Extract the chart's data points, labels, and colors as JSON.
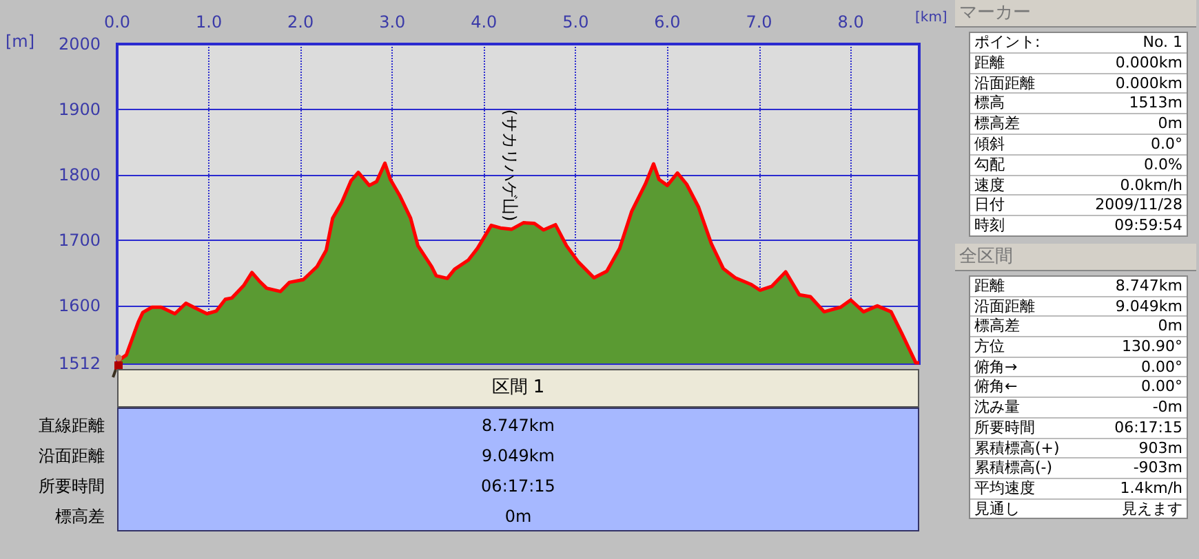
{
  "chart_data": [
    {
      "type": "area",
      "xlabel": "[km]",
      "ylabel": "[m]",
      "x": [
        0,
        0.1,
        0.23,
        0.28,
        0.38,
        0.48,
        0.63,
        0.75,
        0.85,
        0.98,
        1.08,
        1.18,
        1.25,
        1.38,
        1.47,
        1.55,
        1.63,
        1.78,
        1.88,
        2.03,
        2.18,
        2.28,
        2.35,
        2.45,
        2.55,
        2.63,
        2.75,
        2.83,
        2.92,
        2.98,
        3.08,
        3.2,
        3.28,
        3.43,
        3.48,
        3.6,
        3.68,
        3.83,
        3.93,
        4.08,
        4.18,
        4.3,
        4.43,
        4.55,
        4.65,
        4.78,
        4.9,
        5.03,
        5.2,
        5.34,
        5.48,
        5.61,
        5.76,
        5.85,
        5.91,
        6.0,
        6.11,
        6.21,
        6.34,
        6.48,
        6.61,
        6.74,
        6.91,
        7.01,
        7.14,
        7.29,
        7.44,
        7.56,
        7.71,
        7.89,
        8.0,
        8.14,
        8.29,
        8.44,
        8.56,
        8.71,
        8.747
      ],
      "series": [
        {
          "color": "#5a9a32",
          "values": [
            1515,
            1525,
            1575,
            1590,
            1598,
            1598,
            1588,
            1604,
            1597,
            1588,
            1592,
            1610,
            1612,
            1631,
            1651,
            1638,
            1627,
            1622,
            1636,
            1640,
            1660,
            1685,
            1734,
            1758,
            1791,
            1804,
            1784,
            1790,
            1818,
            1793,
            1769,
            1734,
            1692,
            1660,
            1646,
            1642,
            1656,
            1670,
            1688,
            1723,
            1719,
            1717,
            1727,
            1726,
            1716,
            1724,
            1692,
            1667,
            1643,
            1653,
            1688,
            1744,
            1786,
            1817,
            1793,
            1784,
            1803,
            1786,
            1751,
            1695,
            1657,
            1643,
            1633,
            1624,
            1630,
            1652,
            1617,
            1614,
            1591,
            1598,
            1609,
            1591,
            1600,
            1591,
            1557,
            1513,
            1513
          ]
        }
      ],
      "xlim": [
        0,
        8.747
      ],
      "xticks": [
        {
          "value": 0,
          "label": "0.0"
        },
        {
          "value": 1,
          "label": "1.0"
        },
        {
          "value": 2,
          "label": "2.0"
        },
        {
          "value": 3,
          "label": "3.0"
        },
        {
          "value": 4,
          "label": "4.0"
        },
        {
          "value": 5,
          "label": "5.0"
        },
        {
          "value": 6,
          "label": "6.0"
        },
        {
          "value": 7,
          "label": "7.0"
        },
        {
          "value": 8,
          "label": "8.0"
        }
      ],
      "ylim": [
        1512,
        2000
      ],
      "yticks": [
        1512,
        1600,
        1700,
        1800,
        1900,
        2000
      ],
      "grid": true,
      "annotations": [
        "(サカリハゲ山)"
      ]
    },
    {
      "type": "other",
      "title": "区間 1",
      "annotations": [
        "直線距離",
        "8.747km",
        "沿面距離",
        "9.049km",
        "所要時間",
        "06:17:15",
        "標高差",
        "0m"
      ]
    },
    {
      "type": "other",
      "title": "マーカー",
      "annotations": [
        "ポイント:",
        "No. 1",
        "距離",
        "0.000km",
        "沿面距離",
        "0.000km",
        "標高",
        "1513m",
        "標高差",
        "0m",
        "傾斜",
        "0.0°",
        "勾配",
        "0.0%",
        "速度",
        "0.0km/h",
        "日付",
        "2009/11/28",
        "時刻",
        "09:59:54"
      ]
    },
    {
      "type": "other",
      "title": "全区間",
      "annotations": [
        "距離",
        "8.747km",
        "沿面距離",
        "9.049km",
        "標高差",
        "0m",
        "方位",
        "130.90°",
        "俯角→",
        "0.00°",
        "俯角←",
        "0.00°",
        "沈み量",
        "-0m",
        "所要時間",
        "06:17:15",
        "累積標高(+)",
        "903m",
        "累積標高(-)",
        "-903m",
        "平均速度",
        "1.4km/h",
        "見通し",
        "見えます"
      ]
    }
  ]
}
